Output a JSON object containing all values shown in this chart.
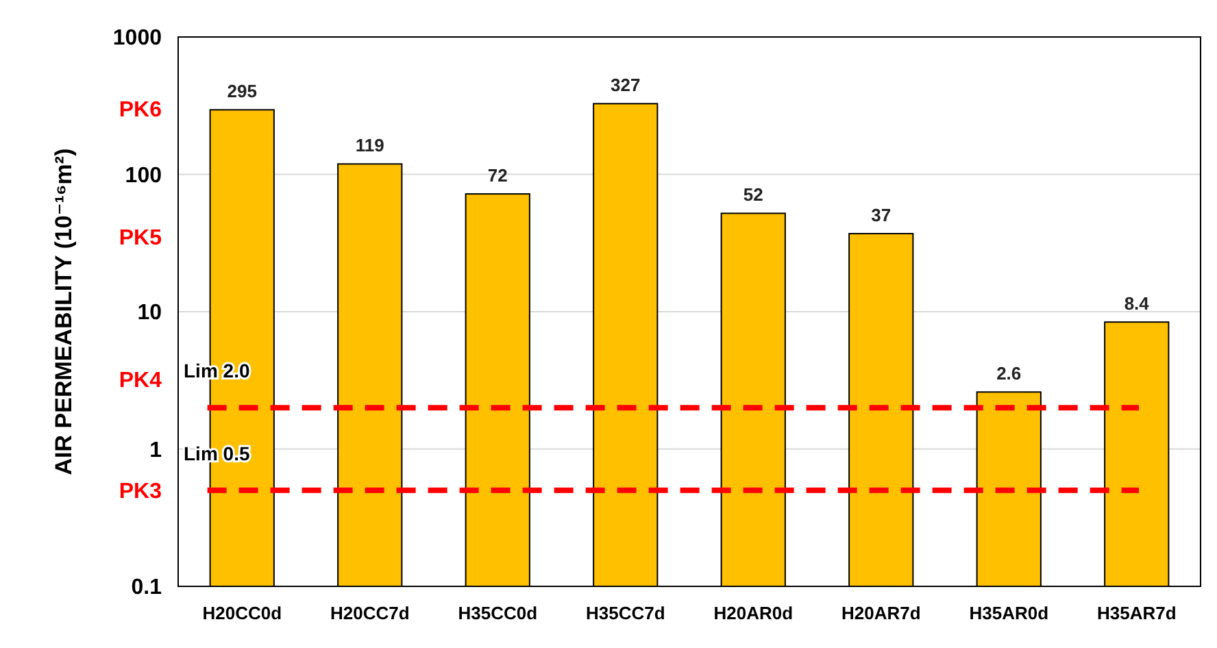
{
  "chart_data": {
    "type": "bar",
    "ylabel": "AIR PERMEABILITY (10⁻¹⁶m²)",
    "categories": [
      "H20CC0d",
      "H20CC7d",
      "H35CC0d",
      "H35CC7d",
      "H20AR0d",
      "H20AR7d",
      "H35AR0d",
      "H35AR7d"
    ],
    "values": [
      295,
      119,
      72,
      327,
      52,
      37,
      2.6,
      8.4
    ],
    "color": "#ffc000",
    "data_labels": true,
    "log": true,
    "grid": "y",
    "ylim": [
      0.1,
      1000
    ],
    "yticks": [
      0.1,
      {
        "value": 0.5,
        "label": "PK3"
      },
      1,
      {
        "value": 3.2,
        "label": "PK4"
      },
      10,
      {
        "value": 35,
        "label": "PK5"
      },
      100,
      {
        "value": 300,
        "label": "PK6"
      },
      1000
    ],
    "ref_lines": [
      {
        "axis": "y",
        "value": 2,
        "label": "Lim 2.0",
        "color": "#ff0000",
        "line_style": "dashed"
      },
      {
        "axis": "y",
        "value": 0.5,
        "label": "Lim 0.5",
        "color": "#ff0000",
        "line_style": "dashed"
      }
    ]
  }
}
